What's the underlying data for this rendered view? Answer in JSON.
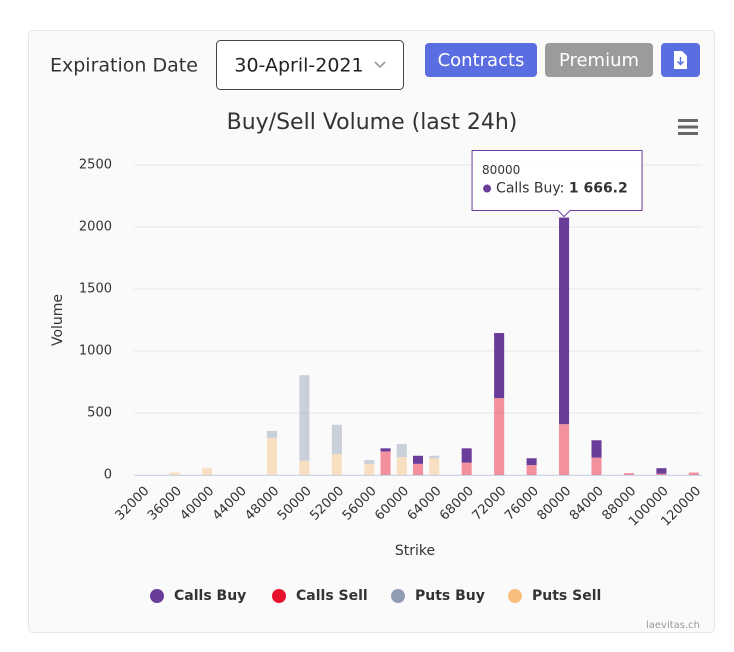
{
  "controls": {
    "expiration_label": "Expiration Date",
    "expiration_value": "30-April-2021",
    "buttons": [
      "Contracts",
      "Premium"
    ],
    "credit": "laevitas.ch"
  },
  "chart_data": {
    "type": "bar",
    "stacked": true,
    "title": "Buy/Sell Volume (last 24h)",
    "xlabel": "Strike",
    "ylabel": "Volume",
    "categories": [
      "32000",
      null,
      "36000",
      null,
      "40000",
      null,
      "44000",
      null,
      "48000",
      null,
      "50000",
      null,
      "52000",
      null,
      "56000",
      null,
      "60000",
      null,
      "64000",
      null,
      "68000",
      null,
      "72000",
      null,
      "76000",
      null,
      "80000",
      null,
      "84000",
      null,
      "88000",
      null,
      "100000",
      null,
      "120000"
    ],
    "series": [
      {
        "name": "Calls Buy",
        "color": "#6a3d9a",
        "values": [
          0,
          0,
          0,
          0,
          0,
          0,
          0,
          0,
          0,
          0,
          0,
          0,
          0,
          0,
          0,
          25,
          0,
          65,
          0,
          0,
          115,
          0,
          525,
          0,
          55,
          0,
          1666.2,
          0,
          140,
          0,
          0,
          0,
          45,
          0,
          0
        ],
        "value_labels": [
          null,
          null,
          null,
          null,
          null,
          null,
          null,
          null,
          null,
          null,
          null,
          null,
          null,
          null,
          null,
          null,
          null,
          null,
          null,
          null,
          null,
          null,
          null,
          null,
          null,
          null,
          "1 666.2",
          null,
          null,
          null,
          null,
          null,
          null,
          null,
          null
        ]
      },
      {
        "name": "Calls Sell",
        "color": "#e8112d",
        "values": [
          0,
          0,
          0,
          0,
          0,
          0,
          0,
          0,
          0,
          0,
          0,
          0,
          0,
          0,
          0,
          190,
          0,
          90,
          0,
          0,
          100,
          0,
          620,
          0,
          80,
          0,
          410,
          0,
          140,
          0,
          15,
          0,
          10,
          0,
          20
        ]
      },
      {
        "name": "Puts Buy",
        "color": "#8f9db3",
        "values": [
          0,
          0,
          0,
          0,
          0,
          0,
          0,
          0,
          55,
          0,
          690,
          0,
          235,
          0,
          30,
          0,
          105,
          0,
          20,
          0,
          0,
          0,
          0,
          0,
          0,
          0,
          0,
          0,
          0,
          0,
          0,
          0,
          0,
          0,
          0
        ]
      },
      {
        "name": "Puts Sell",
        "color": "#f9be7e",
        "values": [
          0,
          0,
          20,
          0,
          55,
          0,
          0,
          0,
          300,
          0,
          115,
          0,
          170,
          0,
          90,
          0,
          145,
          0,
          135,
          0,
          0,
          0,
          0,
          0,
          0,
          0,
          0,
          0,
          0,
          0,
          0,
          0,
          0,
          0,
          0
        ]
      }
    ],
    "ylim": [
      0,
      2500
    ],
    "yticks": [
      0,
      500,
      1000,
      1500,
      2000,
      2500
    ],
    "grid": true
  }
}
